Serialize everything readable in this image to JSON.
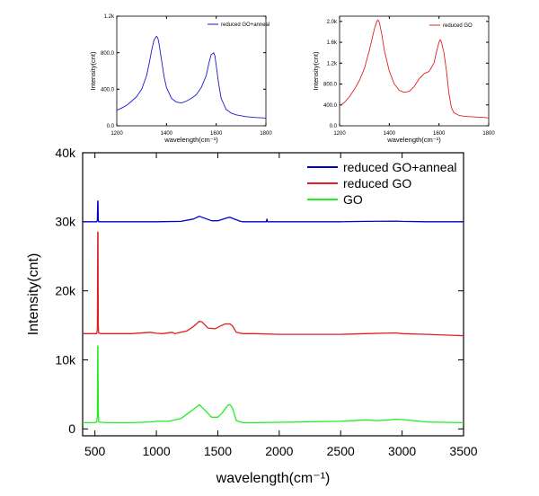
{
  "chart_data": [
    {
      "type": "line",
      "xlabel": "wavelength(cm⁻¹)",
      "ylabel": "Intensity(cnt)",
      "xlim": [
        1200,
        1800
      ],
      "ylim": [
        0,
        1200
      ],
      "xticks": [
        1200,
        1400,
        1600,
        1800
      ],
      "xtick_labels": [
        "1200",
        "1400",
        "1600",
        "1800"
      ],
      "yticks": [
        0,
        400,
        800,
        1200
      ],
      "ytick_labels": [
        "0.0",
        "400.0",
        "800.0",
        "1.2k"
      ],
      "legend_position": "top-right",
      "series": [
        {
          "name": "reduced GO+anneal",
          "color": "#1a1acc",
          "x": [
            1200,
            1220,
            1240,
            1260,
            1280,
            1300,
            1320,
            1330,
            1340,
            1350,
            1360,
            1365,
            1370,
            1380,
            1390,
            1400,
            1420,
            1440,
            1460,
            1480,
            1500,
            1520,
            1540,
            1560,
            1570,
            1580,
            1590,
            1595,
            1600,
            1610,
            1620,
            1640,
            1660,
            1680,
            1700,
            1720,
            1740,
            1760,
            1780,
            1800
          ],
          "y": [
            170,
            195,
            225,
            270,
            320,
            400,
            550,
            680,
            820,
            940,
            980,
            960,
            900,
            720,
            540,
            420,
            300,
            260,
            250,
            270,
            300,
            340,
            420,
            550,
            680,
            780,
            800,
            760,
            660,
            460,
            300,
            180,
            140,
            120,
            110,
            100,
            95,
            90,
            88,
            85
          ]
        }
      ]
    },
    {
      "type": "line",
      "xlabel": "wavelength(cm⁻¹)",
      "ylabel": "Intensity(cnt)",
      "xlim": [
        1200,
        1800
      ],
      "ylim": [
        0,
        2100
      ],
      "xticks": [
        1200,
        1400,
        1600,
        1800
      ],
      "xtick_labels": [
        "1200",
        "1400",
        "1600",
        "1800"
      ],
      "yticks": [
        0,
        400,
        800,
        1200,
        1600,
        2000
      ],
      "ytick_labels": [
        "0.0",
        "400.0",
        "800.0",
        "1.2k",
        "1.6k",
        "2.0k"
      ],
      "legend_position": "top-right",
      "series": [
        {
          "name": "reduced GO",
          "color": "#e02020",
          "x": [
            1200,
            1220,
            1240,
            1260,
            1280,
            1300,
            1320,
            1340,
            1350,
            1355,
            1360,
            1370,
            1380,
            1400,
            1420,
            1440,
            1460,
            1480,
            1500,
            1520,
            1540,
            1560,
            1580,
            1590,
            1600,
            1605,
            1610,
            1620,
            1630,
            1640,
            1650,
            1660,
            1680,
            1700,
            1720,
            1740,
            1760,
            1780,
            1800
          ],
          "y": [
            380,
            450,
            560,
            700,
            870,
            1100,
            1450,
            1850,
            2000,
            2030,
            1980,
            1750,
            1450,
            1050,
            800,
            680,
            640,
            660,
            750,
            900,
            1000,
            1040,
            1200,
            1420,
            1600,
            1650,
            1600,
            1400,
            1050,
            620,
            350,
            250,
            200,
            185,
            175,
            170,
            165,
            160,
            150
          ]
        }
      ]
    },
    {
      "type": "line",
      "xlabel": "wavelength(cm⁻¹)",
      "ylabel": "Intensity(cnt)",
      "xlim": [
        400,
        3500
      ],
      "ylim": [
        -1000,
        40000
      ],
      "xticks": [
        500,
        1000,
        1500,
        2000,
        2500,
        3000,
        3500
      ],
      "xtick_labels": [
        "500",
        "1000",
        "1500",
        "2000",
        "2500",
        "3000",
        "3500"
      ],
      "yticks": [
        0,
        10000,
        20000,
        30000,
        40000
      ],
      "ytick_labels": [
        "0",
        "10k",
        "20k",
        "30k",
        "40k"
      ],
      "legend_position": "top-right",
      "series": [
        {
          "name": "reduced GO+anneal",
          "color": "#0000cc",
          "x": [
            400,
            500,
            515,
            520,
            523,
            525,
            527,
            530,
            545,
            600,
            800,
            1000,
            1200,
            1300,
            1350,
            1380,
            1450,
            1500,
            1580,
            1600,
            1620,
            1680,
            1700,
            1800,
            1895,
            1900,
            1905,
            2000,
            2500,
            2700,
            2950,
            3000,
            3200,
            3500
          ],
          "y": [
            30000,
            30000,
            30000,
            30200,
            33000,
            33000,
            30300,
            30000,
            30000,
            30000,
            30000,
            30000,
            30050,
            30400,
            30800,
            30600,
            30150,
            30150,
            30600,
            30650,
            30500,
            30100,
            30000,
            30000,
            30000,
            30400,
            30000,
            30000,
            30000,
            30050,
            30100,
            30050,
            30000,
            30000
          ]
        },
        {
          "name": "reduced GO",
          "color": "#e02020",
          "x": [
            400,
            500,
            515,
            520,
            523,
            525,
            527,
            530,
            545,
            600,
            800,
            950,
            1000,
            1050,
            1130,
            1150,
            1250,
            1300,
            1350,
            1370,
            1420,
            1480,
            1520,
            1560,
            1600,
            1620,
            1650,
            1700,
            1800,
            2000,
            2500,
            2700,
            2950,
            3000,
            3200,
            3500
          ],
          "y": [
            13800,
            13800,
            13800,
            14500,
            28500,
            28500,
            15000,
            13900,
            13800,
            13800,
            13800,
            14000,
            13850,
            13800,
            14000,
            13800,
            14200,
            14800,
            15600,
            15500,
            14600,
            14500,
            14900,
            15200,
            15200,
            14900,
            14000,
            13800,
            13800,
            13700,
            13700,
            13800,
            13900,
            13800,
            13700,
            13500
          ]
        },
        {
          "name": "GO",
          "color": "#22ee22",
          "x": [
            400,
            500,
            515,
            520,
            523,
            525,
            527,
            530,
            545,
            600,
            800,
            950,
            1000,
            1100,
            1200,
            1300,
            1350,
            1380,
            1450,
            1500,
            1540,
            1580,
            1600,
            1620,
            1650,
            1700,
            1800,
            2000,
            2500,
            2700,
            2800,
            2950,
            3000,
            3200,
            3500
          ],
          "y": [
            900,
            900,
            1000,
            2000,
            12000,
            12000,
            3000,
            1000,
            950,
            900,
            900,
            1000,
            1100,
            1100,
            1500,
            2800,
            3500,
            3000,
            1700,
            1700,
            2400,
            3400,
            3500,
            3000,
            1200,
            900,
            900,
            950,
            1100,
            1300,
            1200,
            1400,
            1350,
            1000,
            900
          ]
        }
      ]
    }
  ]
}
